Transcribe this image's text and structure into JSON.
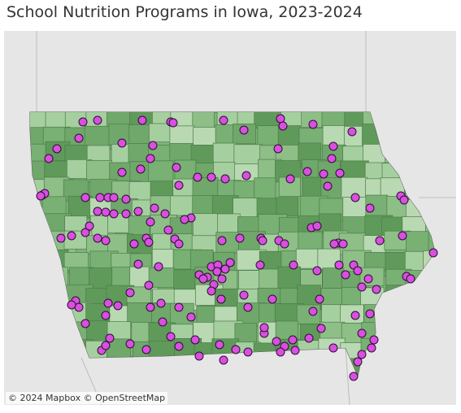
{
  "header": {
    "title": "School Nutrition Programs in Iowa, 2023-2024"
  },
  "map": {
    "attribution": "© 2024 Mapbox © OpenStreetMap"
  }
}
